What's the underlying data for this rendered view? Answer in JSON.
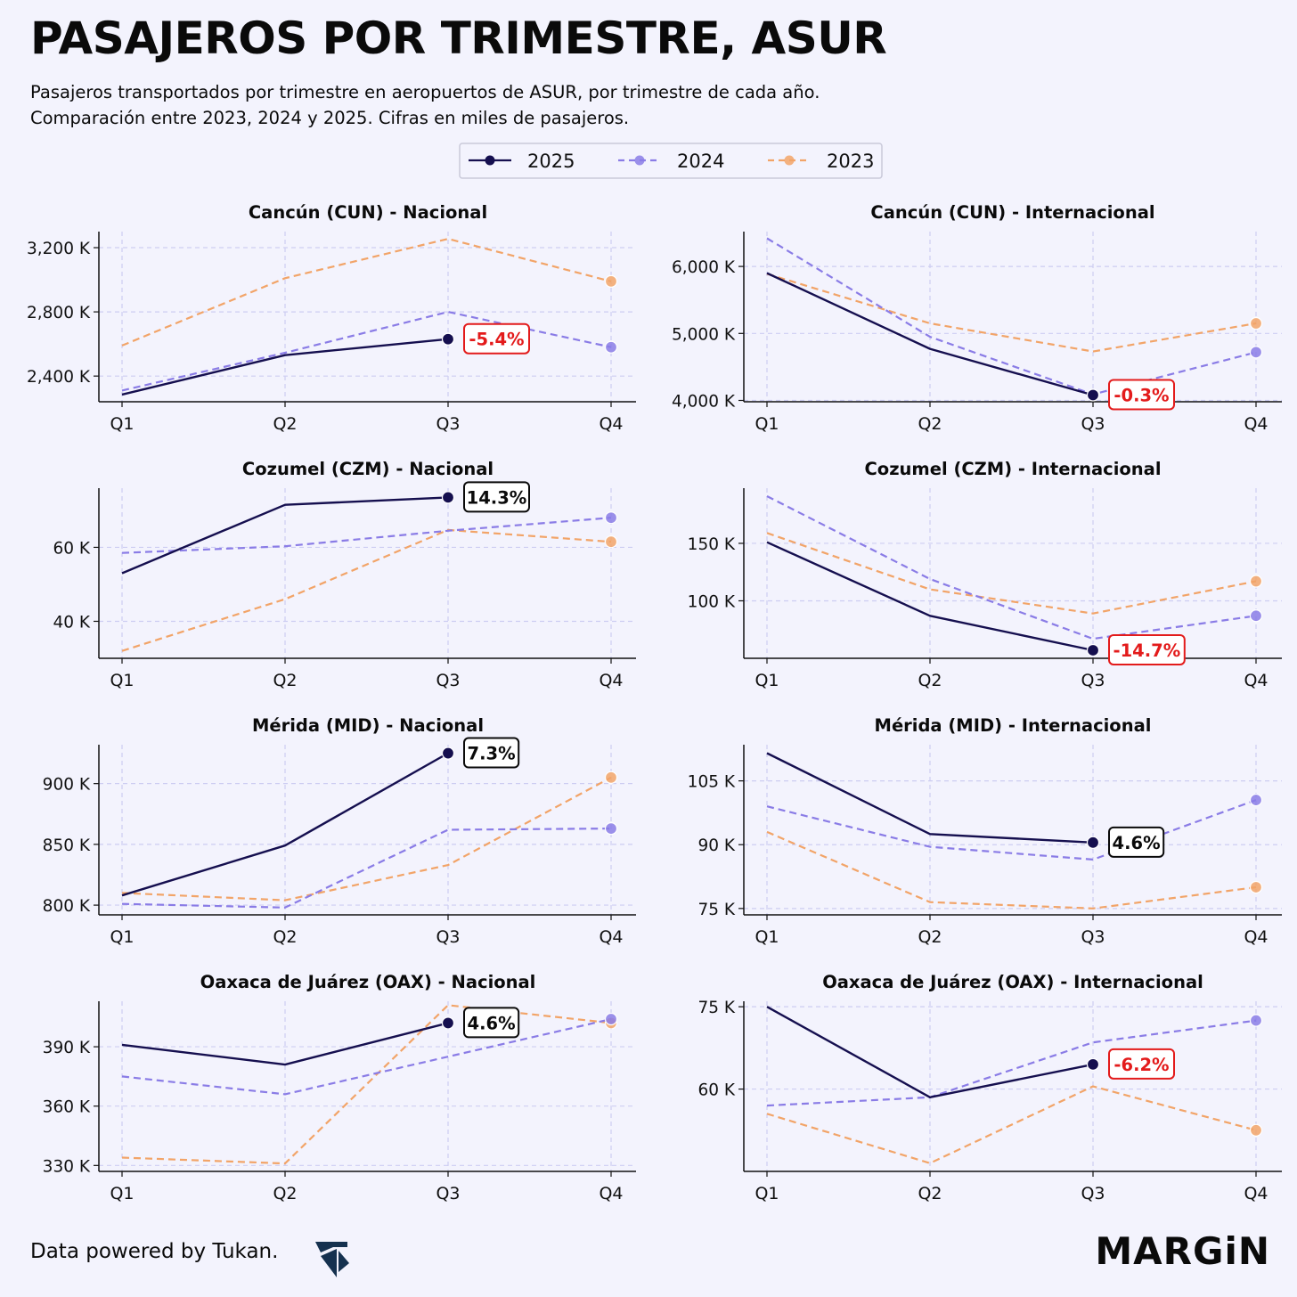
{
  "header": {
    "title": "PASAJEROS POR TRIMESTRE, ASUR",
    "subtitle_line1": "Pasajeros transportados por trimestre en aeropuertos de ASUR, por trimestre de cada año.",
    "subtitle_line2": "Comparación entre 2023, 2024 y 2025. Cifras en miles de pasajeros."
  },
  "legend": [
    {
      "label": "2025",
      "color": "#150f4f",
      "dashed": false
    },
    {
      "label": "2024",
      "color": "#8a7ce6",
      "dashed": true
    },
    {
      "label": "2023",
      "color": "#f2a468",
      "dashed": true
    }
  ],
  "footer": {
    "source": "Data powered by Tukan.",
    "brand": "MARGiN",
    "logo_icon": "tukan-logo-icon"
  },
  "colors": {
    "background": "#f3f3fd",
    "s2025": "#150f4f",
    "s2024": "#8a7ce6",
    "s2023": "#f2a468",
    "negative": "#e31b1b",
    "grid": "#cdcdf2"
  },
  "chart_data": [
    {
      "type": "line",
      "title": "Cancún (CUN) - Nacional",
      "categories": [
        "Q1",
        "Q2",
        "Q3",
        "Q4"
      ],
      "ylim": [
        2240,
        3300
      ],
      "yticks": [
        2400,
        2800,
        3200
      ],
      "ytick_labels": [
        "2,400 K",
        "2,800 K",
        "3,200 K"
      ],
      "series": [
        {
          "name": "2025",
          "values": [
            2285,
            2530,
            2630,
            null
          ]
        },
        {
          "name": "2024",
          "values": [
            2310,
            2545,
            2800,
            2580
          ]
        },
        {
          "name": "2023",
          "values": [
            2590,
            3010,
            3255,
            2990
          ]
        }
      ],
      "annotation": {
        "text": "-5.4%",
        "negative": true
      }
    },
    {
      "type": "line",
      "title": "Cancún (CUN) - Internacional",
      "categories": [
        "Q1",
        "Q2",
        "Q3",
        "Q4"
      ],
      "ylim": [
        3980,
        6520
      ],
      "yticks": [
        4000,
        5000,
        6000
      ],
      "ytick_labels": [
        "4,000 K",
        "5,000 K",
        "6,000 K"
      ],
      "series": [
        {
          "name": "2025",
          "values": [
            5900,
            4770,
            4080,
            null
          ]
        },
        {
          "name": "2024",
          "values": [
            6420,
            4950,
            4090,
            4720
          ]
        },
        {
          "name": "2023",
          "values": [
            5890,
            5150,
            4730,
            5150
          ]
        }
      ],
      "annotation": {
        "text": "-0.3%",
        "negative": true
      }
    },
    {
      "type": "line",
      "title": "Cozumel (CZM) - Nacional",
      "categories": [
        "Q1",
        "Q2",
        "Q3",
        "Q4"
      ],
      "ylim": [
        30,
        76
      ],
      "yticks": [
        40,
        60
      ],
      "ytick_labels": [
        "40 K",
        "60 K"
      ],
      "series": [
        {
          "name": "2025",
          "values": [
            53,
            71.5,
            73.5,
            null
          ]
        },
        {
          "name": "2024",
          "values": [
            58.5,
            60.3,
            64.5,
            68
          ]
        },
        {
          "name": "2023",
          "values": [
            32,
            46,
            64.7,
            61.5
          ]
        }
      ],
      "annotation": {
        "text": "14.3%",
        "negative": false
      }
    },
    {
      "type": "line",
      "title": "Cozumel (CZM) - Internacional",
      "categories": [
        "Q1",
        "Q2",
        "Q3",
        "Q4"
      ],
      "ylim": [
        50,
        198
      ],
      "yticks": [
        100,
        150
      ],
      "ytick_labels": [
        "100 K",
        "150 K"
      ],
      "series": [
        {
          "name": "2025",
          "values": [
            151,
            87,
            57,
            null
          ]
        },
        {
          "name": "2024",
          "values": [
            191,
            119,
            67,
            87
          ]
        },
        {
          "name": "2023",
          "values": [
            159,
            110,
            89,
            117
          ]
        }
      ],
      "annotation": {
        "text": "-14.7%",
        "negative": true
      }
    },
    {
      "type": "line",
      "title": "Mérida (MID) - Nacional",
      "categories": [
        "Q1",
        "Q2",
        "Q3",
        "Q4"
      ],
      "ylim": [
        792,
        932
      ],
      "yticks": [
        800,
        850,
        900
      ],
      "ytick_labels": [
        "800 K",
        "850 K",
        "900 K"
      ],
      "series": [
        {
          "name": "2025",
          "values": [
            808,
            849,
            925,
            null
          ]
        },
        {
          "name": "2024",
          "values": [
            801,
            798,
            862,
            863
          ]
        },
        {
          "name": "2023",
          "values": [
            810,
            804,
            833,
            905
          ]
        }
      ],
      "annotation": {
        "text": "7.3%",
        "negative": false
      }
    },
    {
      "type": "line",
      "title": "Mérida (MID) - Internacional",
      "categories": [
        "Q1",
        "Q2",
        "Q3",
        "Q4"
      ],
      "ylim": [
        73.5,
        113.5
      ],
      "yticks": [
        75,
        90,
        105
      ],
      "ytick_labels": [
        "75 K",
        "90 K",
        "105 K"
      ],
      "series": [
        {
          "name": "2025",
          "values": [
            111.5,
            92.5,
            90.5,
            null
          ]
        },
        {
          "name": "2024",
          "values": [
            99,
            89.5,
            86.5,
            100.5
          ]
        },
        {
          "name": "2023",
          "values": [
            93,
            76.5,
            75,
            80
          ]
        }
      ],
      "annotation": {
        "text": "4.6%",
        "negative": false
      }
    },
    {
      "type": "line",
      "title": "Oaxaca de Juárez (OAX) - Nacional",
      "categories": [
        "Q1",
        "Q2",
        "Q3",
        "Q4"
      ],
      "ylim": [
        327,
        413
      ],
      "yticks": [
        330,
        360,
        390
      ],
      "ytick_labels": [
        "330 K",
        "360 K",
        "390 K"
      ],
      "series": [
        {
          "name": "2025",
          "values": [
            391,
            381,
            402,
            null
          ]
        },
        {
          "name": "2024",
          "values": [
            375,
            366,
            385,
            404
          ]
        },
        {
          "name": "2023",
          "values": [
            334,
            331,
            411,
            402
          ]
        }
      ],
      "annotation": {
        "text": "4.6%",
        "negative": false
      }
    },
    {
      "type": "line",
      "title": "Oaxaca de Juárez (OAX) - Internacional",
      "categories": [
        "Q1",
        "Q2",
        "Q3",
        "Q4"
      ],
      "ylim": [
        45,
        76
      ],
      "yticks": [
        60,
        75
      ],
      "ytick_labels": [
        "60 K",
        "75 K"
      ],
      "series": [
        {
          "name": "2025",
          "values": [
            75,
            58.5,
            64.5,
            null
          ]
        },
        {
          "name": "2024",
          "values": [
            57,
            58.5,
            68.5,
            72.5
          ]
        },
        {
          "name": "2023",
          "values": [
            55.5,
            46.5,
            60.5,
            52.5
          ]
        }
      ],
      "annotation": {
        "text": "-6.2%",
        "negative": true
      }
    }
  ]
}
